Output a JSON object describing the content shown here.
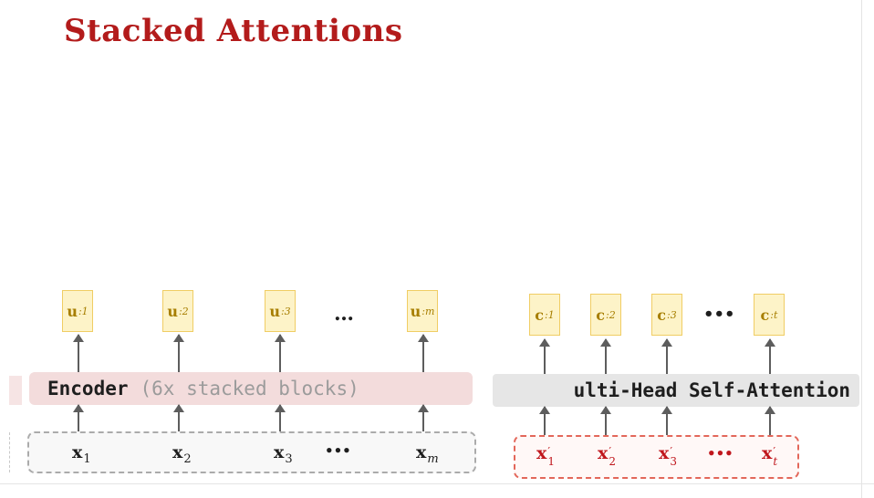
{
  "slide": {
    "title": "Stacked Attentions"
  },
  "encoder": {
    "outputs": [
      {
        "base": "u",
        "sub": ":1"
      },
      {
        "base": "u",
        "sub": ":2"
      },
      {
        "base": "u",
        "sub": ":3"
      },
      {
        "base": "u",
        "sub": ":m"
      }
    ],
    "ellipsis": "…",
    "block_name": "Encoder",
    "block_note": "(6x stacked blocks)",
    "inputs": [
      {
        "base": "x",
        "sub": "1"
      },
      {
        "base": "x",
        "sub": "2"
      },
      {
        "base": "x",
        "sub": "3"
      },
      {
        "base": "x",
        "sub": "m"
      }
    ],
    "input_ellipsis": "•••"
  },
  "decoder": {
    "outputs": [
      {
        "base": "c",
        "sub": ":1"
      },
      {
        "base": "c",
        "sub": ":2"
      },
      {
        "base": "c",
        "sub": ":3"
      },
      {
        "base": "c",
        "sub": ":t"
      }
    ],
    "ellipsis": "•••",
    "block_label": "ulti-Head Self-Attention",
    "inputs": [
      {
        "base": "x",
        "prime": "′",
        "sub": "1"
      },
      {
        "base": "x",
        "prime": "′",
        "sub": "2"
      },
      {
        "base": "x",
        "prime": "′",
        "sub": "3"
      },
      {
        "base": "x",
        "prime": "′",
        "sub": "t"
      }
    ],
    "input_ellipsis": "•••"
  },
  "colors": {
    "title": "#b31b1b",
    "output_fill": "#fdf3c8",
    "output_border": "#f0cd64",
    "output_text": "#a77e00",
    "encoder_block": "#f3dcdc",
    "attention_block": "#e6e6e6",
    "encoder_input_border": "#ababab",
    "decoder_input_border": "#e3675a",
    "decoder_input_text": "#c0171d",
    "arrow": "#5d5d5d"
  }
}
